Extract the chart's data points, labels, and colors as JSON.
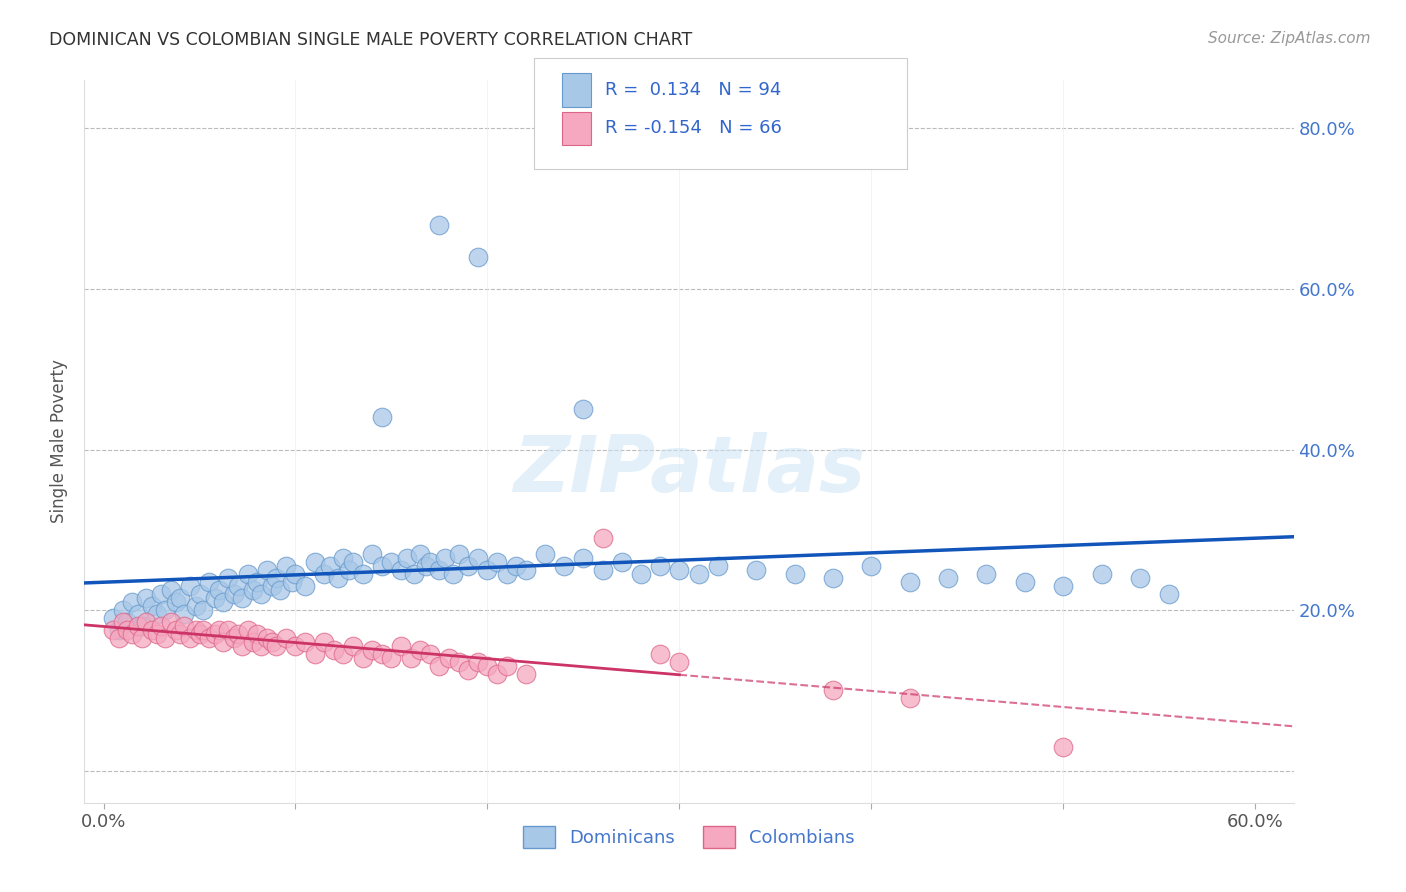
{
  "title": "DOMINICAN VS COLOMBIAN SINGLE MALE POVERTY CORRELATION CHART",
  "source": "Source: ZipAtlas.com",
  "ylabel": "Single Male Poverty",
  "xlim": [
    -0.01,
    0.62
  ],
  "ylim": [
    -0.04,
    0.86
  ],
  "yticks": [
    0.0,
    0.2,
    0.4,
    0.6,
    0.8
  ],
  "xticks": [
    0.0,
    0.1,
    0.2,
    0.3,
    0.4,
    0.5,
    0.6
  ],
  "dominican_color": "#A8C8E8",
  "colombian_color": "#F5A8C0",
  "dominican_edge": "#6699CC",
  "colombian_edge": "#DD6688",
  "trend_dominican_color": "#1155BB",
  "trend_colombian_color": "#CC3366",
  "R_dominican": 0.134,
  "N_dominican": 94,
  "R_colombian": -0.154,
  "N_colombian": 66,
  "watermark": "ZIPatlas",
  "legend_label_dominican": "Dominicans",
  "legend_label_colombian": "Colombians",
  "dominican_x": [
    0.005,
    0.008,
    0.01,
    0.012,
    0.015,
    0.018,
    0.02,
    0.022,
    0.025,
    0.028,
    0.03,
    0.032,
    0.035,
    0.038,
    0.04,
    0.042,
    0.045,
    0.048,
    0.05,
    0.052,
    0.055,
    0.058,
    0.06,
    0.062,
    0.065,
    0.068,
    0.07,
    0.072,
    0.075,
    0.078,
    0.08,
    0.082,
    0.085,
    0.088,
    0.09,
    0.092,
    0.095,
    0.098,
    0.1,
    0.105,
    0.11,
    0.115,
    0.118,
    0.122,
    0.125,
    0.128,
    0.13,
    0.135,
    0.14,
    0.145,
    0.15,
    0.155,
    0.158,
    0.162,
    0.165,
    0.168,
    0.17,
    0.175,
    0.178,
    0.182,
    0.185,
    0.19,
    0.195,
    0.2,
    0.205,
    0.21,
    0.215,
    0.22,
    0.23,
    0.24,
    0.25,
    0.26,
    0.27,
    0.28,
    0.29,
    0.3,
    0.31,
    0.32,
    0.34,
    0.36,
    0.38,
    0.4,
    0.42,
    0.44,
    0.46,
    0.48,
    0.5,
    0.52,
    0.54,
    0.555,
    0.145,
    0.25,
    0.195,
    0.175
  ],
  "dominican_y": [
    0.19,
    0.175,
    0.2,
    0.185,
    0.21,
    0.195,
    0.18,
    0.215,
    0.205,
    0.195,
    0.22,
    0.2,
    0.225,
    0.21,
    0.215,
    0.195,
    0.23,
    0.205,
    0.22,
    0.2,
    0.235,
    0.215,
    0.225,
    0.21,
    0.24,
    0.22,
    0.23,
    0.215,
    0.245,
    0.225,
    0.235,
    0.22,
    0.25,
    0.23,
    0.24,
    0.225,
    0.255,
    0.235,
    0.245,
    0.23,
    0.26,
    0.245,
    0.255,
    0.24,
    0.265,
    0.25,
    0.26,
    0.245,
    0.27,
    0.255,
    0.26,
    0.25,
    0.265,
    0.245,
    0.27,
    0.255,
    0.26,
    0.25,
    0.265,
    0.245,
    0.27,
    0.255,
    0.265,
    0.25,
    0.26,
    0.245,
    0.255,
    0.25,
    0.27,
    0.255,
    0.265,
    0.25,
    0.26,
    0.245,
    0.255,
    0.25,
    0.245,
    0.255,
    0.25,
    0.245,
    0.24,
    0.255,
    0.235,
    0.24,
    0.245,
    0.235,
    0.23,
    0.245,
    0.24,
    0.22,
    0.44,
    0.45,
    0.64,
    0.68
  ],
  "colombian_x": [
    0.005,
    0.008,
    0.01,
    0.012,
    0.015,
    0.018,
    0.02,
    0.022,
    0.025,
    0.028,
    0.03,
    0.032,
    0.035,
    0.038,
    0.04,
    0.042,
    0.045,
    0.048,
    0.05,
    0.052,
    0.055,
    0.058,
    0.06,
    0.062,
    0.065,
    0.068,
    0.07,
    0.072,
    0.075,
    0.078,
    0.08,
    0.082,
    0.085,
    0.088,
    0.09,
    0.095,
    0.1,
    0.105,
    0.11,
    0.115,
    0.12,
    0.125,
    0.13,
    0.135,
    0.14,
    0.145,
    0.15,
    0.155,
    0.16,
    0.165,
    0.17,
    0.175,
    0.18,
    0.185,
    0.19,
    0.195,
    0.2,
    0.205,
    0.21,
    0.22,
    0.26,
    0.29,
    0.3,
    0.38,
    0.42,
    0.5
  ],
  "colombian_y": [
    0.175,
    0.165,
    0.185,
    0.175,
    0.17,
    0.18,
    0.165,
    0.185,
    0.175,
    0.17,
    0.18,
    0.165,
    0.185,
    0.175,
    0.17,
    0.18,
    0.165,
    0.175,
    0.17,
    0.175,
    0.165,
    0.17,
    0.175,
    0.16,
    0.175,
    0.165,
    0.17,
    0.155,
    0.175,
    0.16,
    0.17,
    0.155,
    0.165,
    0.16,
    0.155,
    0.165,
    0.155,
    0.16,
    0.145,
    0.16,
    0.15,
    0.145,
    0.155,
    0.14,
    0.15,
    0.145,
    0.14,
    0.155,
    0.14,
    0.15,
    0.145,
    0.13,
    0.14,
    0.135,
    0.125,
    0.135,
    0.13,
    0.12,
    0.13,
    0.12,
    0.29,
    0.145,
    0.135,
    0.1,
    0.09,
    0.03
  ]
}
